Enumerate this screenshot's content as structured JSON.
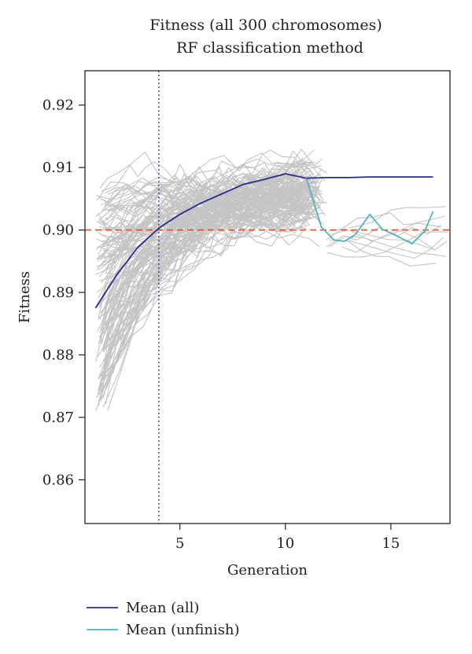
{
  "chart_data": {
    "type": "line",
    "title": "Fitness (all 300 chromosomes)",
    "subtitle": "RF classification method",
    "xlabel": "Generation",
    "ylabel": "Fitness",
    "xlim": [
      0.5,
      17.8
    ],
    "ylim": [
      0.853,
      0.9255
    ],
    "x_ticks": [
      5,
      10,
      15
    ],
    "y_ticks": [
      0.86,
      0.87,
      0.88,
      0.89,
      0.9,
      0.91,
      0.92
    ],
    "x_tick_labels": [
      "5",
      "10",
      "15"
    ],
    "y_tick_labels": [
      "0.86",
      "0.87",
      "0.88",
      "0.89",
      "0.90",
      "0.91",
      "0.92"
    ],
    "reference_lines": [
      {
        "orientation": "vertical",
        "value": 4,
        "style": "dotted",
        "color": "#3a3aaa"
      },
      {
        "orientation": "horizontal",
        "value": 0.9,
        "style": "dashed",
        "color": "#d9532b"
      }
    ],
    "legend_position": "bottom-left",
    "series": [
      {
        "name": "Mean (all)",
        "color": "#2b2b8c",
        "x": [
          1,
          2,
          3,
          4,
          5,
          6,
          7,
          8,
          9,
          10,
          11,
          12,
          13,
          14,
          15,
          16,
          17
        ],
        "values": [
          0.8875,
          0.8928,
          0.8972,
          0.9003,
          0.9025,
          0.9043,
          0.9058,
          0.9073,
          0.9081,
          0.909,
          0.9083,
          0.9084,
          0.9084,
          0.9085,
          0.9085,
          0.9085,
          0.9085
        ]
      },
      {
        "name": "Mean (unfinish)",
        "color": "#4fb5b5",
        "x": [
          11,
          11.7,
          12.3,
          12.8,
          13.3,
          14,
          14.6,
          15.2,
          16,
          16.6,
          17
        ],
        "values": [
          0.9083,
          0.9005,
          0.8984,
          0.8982,
          0.8992,
          0.9025,
          0.9001,
          0.8992,
          0.8978,
          0.8998,
          0.903
        ]
      }
    ]
  }
}
